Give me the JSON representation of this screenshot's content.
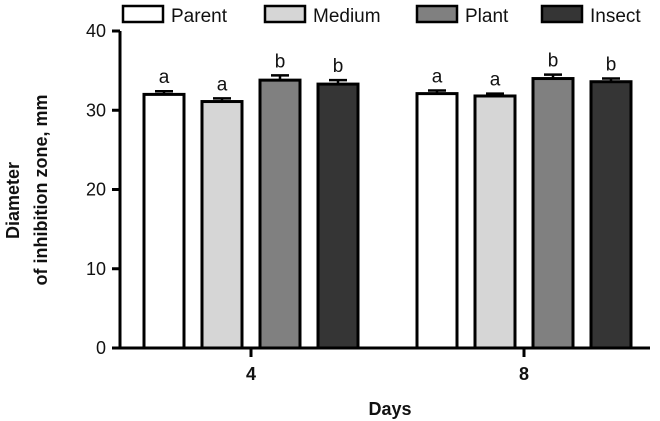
{
  "chart_data": {
    "type": "bar",
    "xlabel": "Days",
    "ylabel_lines": [
      "Diameter",
      "of inhibition zone, mm"
    ],
    "ylim": [
      0,
      40
    ],
    "yticks": [
      0,
      10,
      20,
      30,
      40
    ],
    "categories": [
      "4",
      "8"
    ],
    "legend_position": "top",
    "grid": false,
    "series": [
      {
        "name": "Parent",
        "color": "#ffffff",
        "values": [
          32.0,
          32.1
        ],
        "errors": [
          0.4,
          0.4
        ],
        "letters": [
          "a",
          "a"
        ]
      },
      {
        "name": "Medium",
        "color": "#d6d6d6",
        "values": [
          31.1,
          31.8
        ],
        "errors": [
          0.4,
          0.3
        ],
        "letters": [
          "a",
          "a"
        ]
      },
      {
        "name": "Plant",
        "color": "#808080",
        "values": [
          33.8,
          34.0
        ],
        "errors": [
          0.6,
          0.5
        ],
        "letters": [
          "b",
          "b"
        ]
      },
      {
        "name": "Insect",
        "color": "#353535",
        "values": [
          33.3,
          33.6
        ],
        "errors": [
          0.5,
          0.4
        ],
        "letters": [
          "b",
          "b"
        ]
      }
    ]
  }
}
